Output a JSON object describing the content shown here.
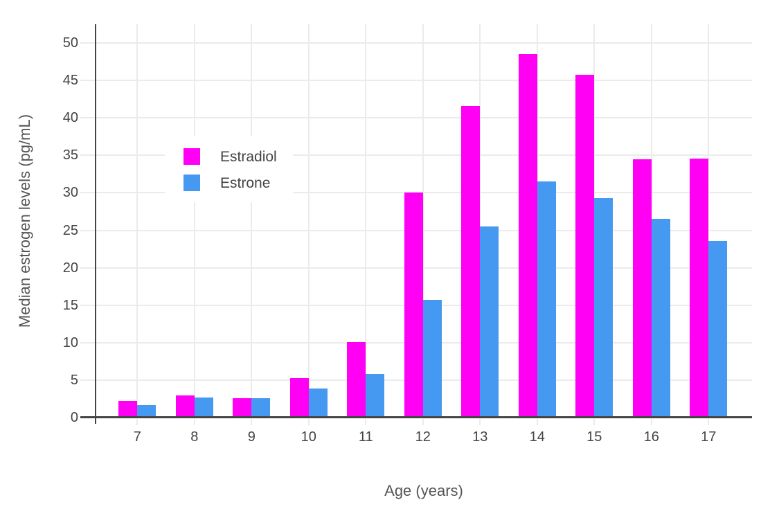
{
  "chart_data": {
    "type": "bar",
    "bar_mode": "grouped",
    "title": "",
    "categories": [
      "7",
      "8",
      "9",
      "10",
      "11",
      "12",
      "13",
      "14",
      "15",
      "16",
      "17"
    ],
    "series": [
      {
        "name": "Estradiol",
        "color": "#ff00f5",
        "values": [
          2.2,
          3.0,
          2.6,
          5.3,
          10.1,
          30.0,
          41.6,
          48.5,
          45.8,
          34.5,
          34.6
        ]
      },
      {
        "name": "Estrone",
        "color": "#4699f0",
        "values": [
          1.7,
          2.7,
          2.6,
          3.9,
          5.8,
          15.7,
          25.5,
          31.5,
          29.3,
          26.5,
          23.6
        ]
      }
    ],
    "xlabel": "Age (years)",
    "ylabel": "Median estrogen levels (pg/mL)",
    "ylim": [
      0,
      52.5
    ],
    "yticks": [
      0,
      5,
      10,
      15,
      20,
      25,
      30,
      35,
      40,
      45,
      50
    ],
    "grid": true,
    "grid_color": "#ebebeb",
    "axis_color": "#444444",
    "tick_label_color": "#444444",
    "axis_title_color": "#555555",
    "legend_position": "inside-upper-left",
    "legend_background": "#ffffff"
  }
}
